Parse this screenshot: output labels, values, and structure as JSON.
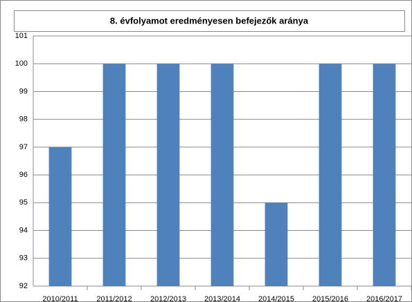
{
  "chart_data": {
    "type": "bar",
    "title": "8. évfolyamot eredményesen befejezők aránya",
    "categories": [
      "2010/2011",
      "2011/2012",
      "2012/2013",
      "2013/2014",
      "2014/2015",
      "2015/2016",
      "2016/2017"
    ],
    "values": [
      97,
      100,
      100,
      100,
      95,
      100,
      100
    ],
    "color": "#4f81bd",
    "ylim": [
      92,
      101
    ],
    "yticks": [
      92,
      93,
      94,
      95,
      96,
      97,
      98,
      99,
      100,
      101
    ],
    "grid": true
  }
}
